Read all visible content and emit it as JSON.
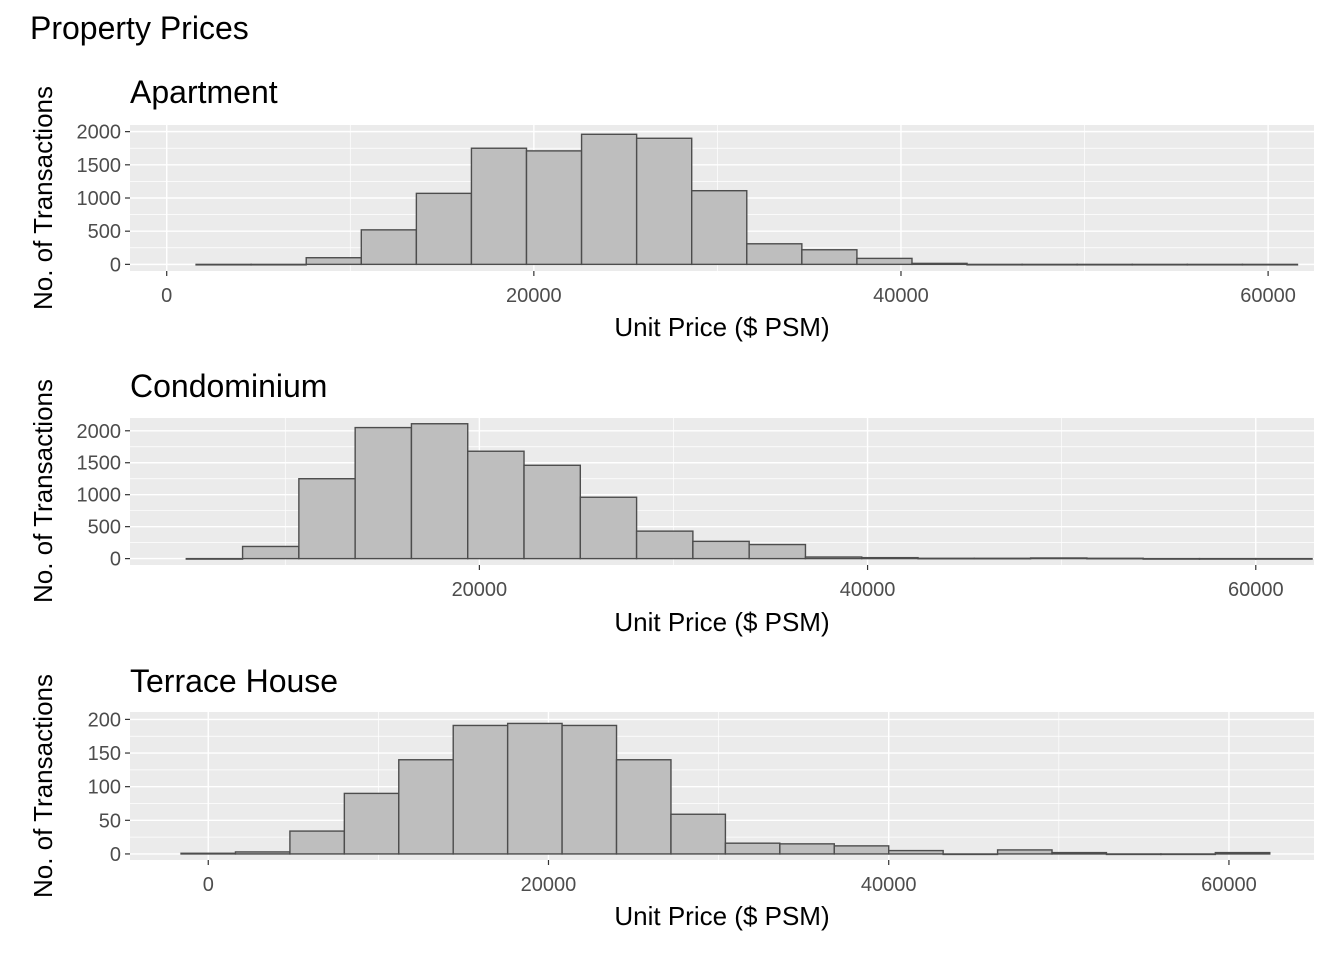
{
  "title": "Property Prices",
  "chart_data": [
    {
      "type": "bar",
      "title": "Apartment",
      "xlabel": "Unit Price ($ PSM)",
      "ylabel": "No. of Transactions",
      "xlim": [
        -2000,
        62500
      ],
      "ylim": [
        -100,
        2100
      ],
      "x_ticks": [
        "0",
        "20000",
        "40000",
        "60000"
      ],
      "x_tick_values": [
        0,
        20000,
        40000,
        60000
      ],
      "y_ticks": [
        "0",
        "500",
        "1000",
        "1500",
        "2000"
      ],
      "y_tick_values": [
        0,
        500,
        1000,
        1500,
        2000
      ],
      "bins": [
        {
          "x0": 1600,
          "x1": 4600,
          "count": 0
        },
        {
          "x0": 4600,
          "x1": 7600,
          "count": 0
        },
        {
          "x0": 7600,
          "x1": 10600,
          "count": 100
        },
        {
          "x0": 10600,
          "x1": 13600,
          "count": 520
        },
        {
          "x0": 13600,
          "x1": 16600,
          "count": 1070
        },
        {
          "x0": 16600,
          "x1": 19600,
          "count": 1750
        },
        {
          "x0": 19600,
          "x1": 22600,
          "count": 1710
        },
        {
          "x0": 22600,
          "x1": 25600,
          "count": 1960
        },
        {
          "x0": 25600,
          "x1": 28600,
          "count": 1900
        },
        {
          "x0": 28600,
          "x1": 31600,
          "count": 1110
        },
        {
          "x0": 31600,
          "x1": 34600,
          "count": 310
        },
        {
          "x0": 34600,
          "x1": 37600,
          "count": 220
        },
        {
          "x0": 37600,
          "x1": 40600,
          "count": 90
        },
        {
          "x0": 40600,
          "x1": 43600,
          "count": 15
        },
        {
          "x0": 43600,
          "x1": 46600,
          "count": 0
        },
        {
          "x0": 46600,
          "x1": 49600,
          "count": 0
        },
        {
          "x0": 49600,
          "x1": 52600,
          "count": 0
        },
        {
          "x0": 52600,
          "x1": 55600,
          "count": 0
        },
        {
          "x0": 55600,
          "x1": 58600,
          "count": 0
        },
        {
          "x0": 58600,
          "x1": 61600,
          "count": 0
        }
      ],
      "grid": true
    },
    {
      "type": "bar",
      "title": "Condominium",
      "xlabel": "Unit Price ($ PSM)",
      "ylabel": "No. of Transactions",
      "xlim": [
        2000,
        63000
      ],
      "ylim": [
        -100,
        2200
      ],
      "x_ticks": [
        "20000",
        "40000",
        "60000"
      ],
      "x_tick_values": [
        20000,
        40000,
        60000
      ],
      "y_ticks": [
        "0",
        "500",
        "1000",
        "1500",
        "2000"
      ],
      "y_tick_values": [
        0,
        500,
        1000,
        1500,
        2000
      ],
      "bins": [
        {
          "x0": 4900,
          "x1": 7800,
          "count": 0
        },
        {
          "x0": 7800,
          "x1": 10700,
          "count": 190
        },
        {
          "x0": 10700,
          "x1": 13600,
          "count": 1250
        },
        {
          "x0": 13600,
          "x1": 16500,
          "count": 2050
        },
        {
          "x0": 16500,
          "x1": 19400,
          "count": 2110
        },
        {
          "x0": 19400,
          "x1": 22300,
          "count": 1680
        },
        {
          "x0": 22300,
          "x1": 25200,
          "count": 1460
        },
        {
          "x0": 25200,
          "x1": 28100,
          "count": 960
        },
        {
          "x0": 28100,
          "x1": 31000,
          "count": 430
        },
        {
          "x0": 31000,
          "x1": 33900,
          "count": 270
        },
        {
          "x0": 33900,
          "x1": 36800,
          "count": 220
        },
        {
          "x0": 36800,
          "x1": 39700,
          "count": 25
        },
        {
          "x0": 39700,
          "x1": 42600,
          "count": 15
        },
        {
          "x0": 42600,
          "x1": 45500,
          "count": 5
        },
        {
          "x0": 45500,
          "x1": 48400,
          "count": 5
        },
        {
          "x0": 48400,
          "x1": 51300,
          "count": 10
        },
        {
          "x0": 51300,
          "x1": 54200,
          "count": 5
        },
        {
          "x0": 54200,
          "x1": 57100,
          "count": 0
        },
        {
          "x0": 57100,
          "x1": 60000,
          "count": 0
        },
        {
          "x0": 60000,
          "x1": 62900,
          "count": 0
        }
      ],
      "grid": true
    },
    {
      "type": "bar",
      "title": "Terrace House",
      "xlabel": "Unit Price ($ PSM)",
      "ylabel": "No. of Transactions",
      "xlim": [
        -4600,
        65000
      ],
      "ylim": [
        -9,
        211
      ],
      "x_ticks": [
        "0",
        "20000",
        "40000",
        "60000"
      ],
      "x_tick_values": [
        0,
        20000,
        40000,
        60000
      ],
      "y_ticks": [
        "0",
        "50",
        "100",
        "150",
        "200"
      ],
      "y_tick_values": [
        0,
        50,
        100,
        150,
        200
      ],
      "bins": [
        {
          "x0": -1600,
          "x1": 1600,
          "count": 1
        },
        {
          "x0": 1600,
          "x1": 4800,
          "count": 3
        },
        {
          "x0": 4800,
          "x1": 8000,
          "count": 34
        },
        {
          "x0": 8000,
          "x1": 11200,
          "count": 90
        },
        {
          "x0": 11200,
          "x1": 14400,
          "count": 140
        },
        {
          "x0": 14400,
          "x1": 17600,
          "count": 191
        },
        {
          "x0": 17600,
          "x1": 20800,
          "count": 194
        },
        {
          "x0": 20800,
          "x1": 24000,
          "count": 191
        },
        {
          "x0": 24000,
          "x1": 27200,
          "count": 140
        },
        {
          "x0": 27200,
          "x1": 30400,
          "count": 59
        },
        {
          "x0": 30400,
          "x1": 33600,
          "count": 16
        },
        {
          "x0": 33600,
          "x1": 36800,
          "count": 15
        },
        {
          "x0": 36800,
          "x1": 40000,
          "count": 12
        },
        {
          "x0": 40000,
          "x1": 43200,
          "count": 5
        },
        {
          "x0": 43200,
          "x1": 46400,
          "count": 0
        },
        {
          "x0": 46400,
          "x1": 49600,
          "count": 6
        },
        {
          "x0": 49600,
          "x1": 52800,
          "count": 2
        },
        {
          "x0": 52800,
          "x1": 56000,
          "count": 0
        },
        {
          "x0": 56000,
          "x1": 59200,
          "count": 0
        },
        {
          "x0": 59200,
          "x1": 62400,
          "count": 2
        }
      ],
      "grid": true
    }
  ]
}
